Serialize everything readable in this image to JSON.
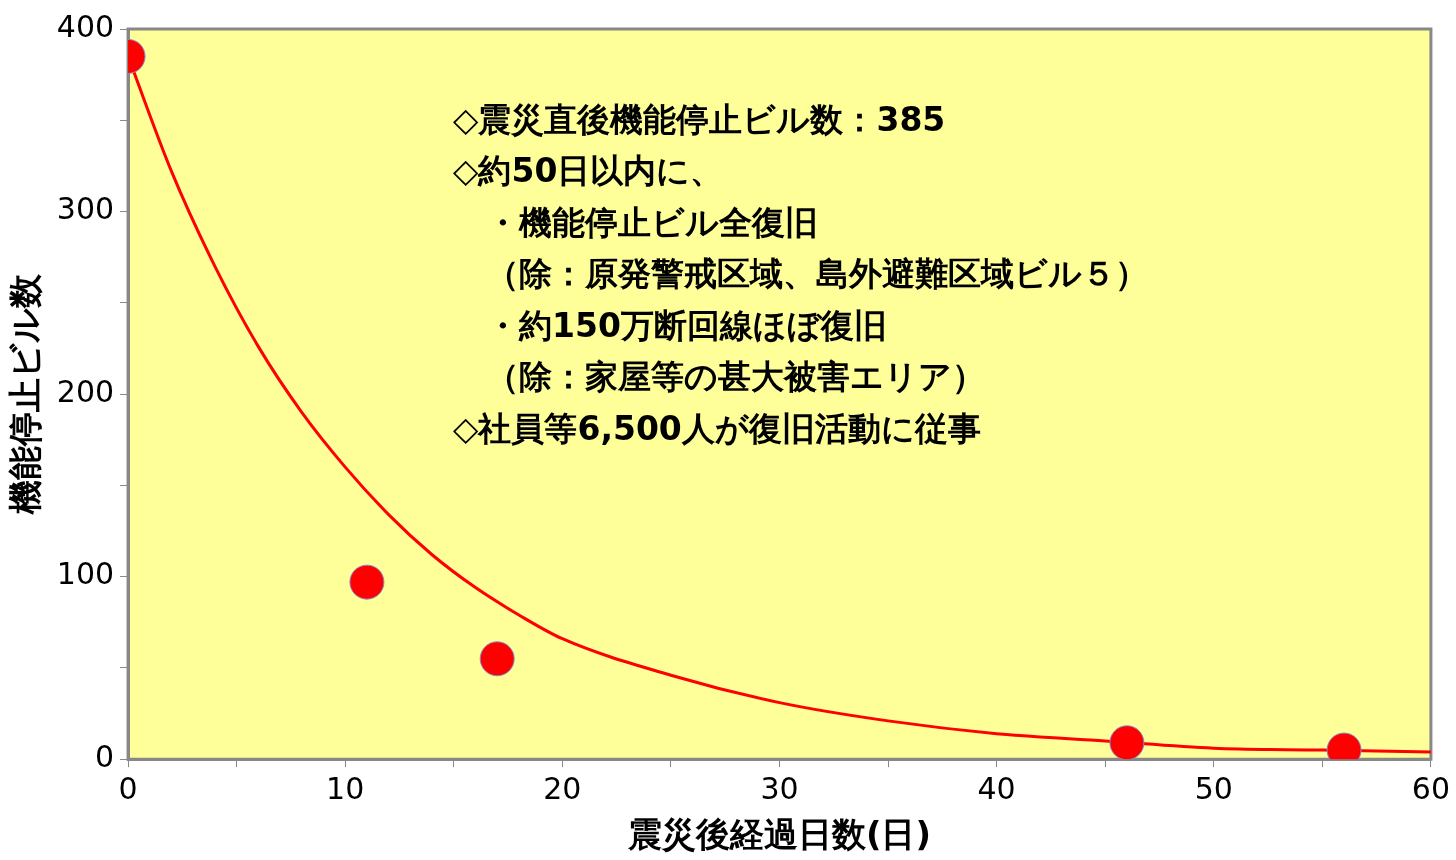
{
  "chart_data": {
    "type": "scatter",
    "xlabel": "震災後経過日数(日)",
    "ylabel": "機能停止ビル数",
    "xlim": [
      0,
      60
    ],
    "xticks": [
      0,
      {
        "value": 5,
        "label": null
      },
      10,
      {
        "value": 15,
        "label": null
      },
      20,
      {
        "value": 25,
        "label": null
      },
      30,
      {
        "value": 35,
        "label": null
      },
      40,
      {
        "value": 45,
        "label": null
      },
      50,
      {
        "value": 55,
        "label": null
      },
      60
    ],
    "ylim": [
      0,
      400
    ],
    "yticks": [
      0,
      {
        "value": 50,
        "label": null
      },
      100,
      {
        "value": 150,
        "label": null
      },
      200,
      {
        "value": 250,
        "label": null
      },
      300,
      {
        "value": 350,
        "label": null
      },
      400
    ],
    "grid": false,
    "legend": false,
    "series": [
      {
        "type": "line",
        "color": "#ff0000",
        "marker": "none",
        "line_style": "solid",
        "x": [
          0,
          2,
          4,
          6,
          8,
          10,
          12,
          14,
          16,
          18,
          20,
          25,
          30,
          35,
          40,
          45,
          50,
          55,
          60
        ],
        "values": [
          385,
          322,
          270,
          226,
          190,
          160,
          134,
          112,
          94,
          79,
          66,
          46,
          31,
          21,
          14,
          10,
          6,
          5,
          4
        ]
      },
      {
        "color": "#ff0000",
        "marker": "circle",
        "x": [
          0,
          11,
          17,
          46,
          56
        ],
        "values": [
          385,
          97,
          55,
          9,
          5
        ]
      }
    ],
    "annotations": [
      "◇震災直後機能停止ビル数：385",
      "◇約50日以内に、",
      "　・機能停止ビル全復旧",
      "　（除：原発警戒区域、島外避難区域ビル５）",
      "　・約150万断回線ほぼ復旧",
      "　（除：家屋等の甚大被害エリア）",
      "◇社員等6,500人が復旧活動に従事"
    ]
  }
}
